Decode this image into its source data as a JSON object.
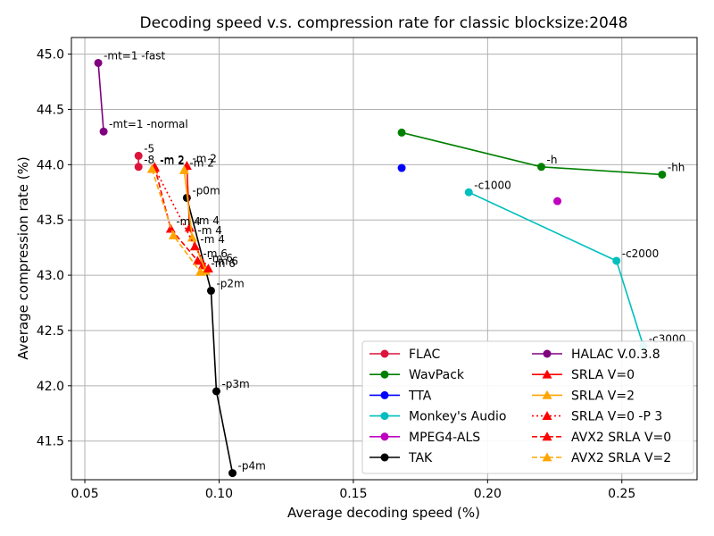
{
  "chart_data": {
    "type": "scatter",
    "title": "Decoding speed v.s. compression rate for classic blocksize:2048",
    "xlabel": "Average decoding speed (%)",
    "ylabel": "Average compression rate (%)",
    "xlim": [
      0.045,
      0.278
    ],
    "ylim": [
      41.15,
      45.15
    ],
    "xticks": [
      "0.05",
      "0.10",
      "0.15",
      "0.20",
      "0.25"
    ],
    "yticks": [
      "41.5",
      "42.0",
      "42.5",
      "43.0",
      "43.5",
      "44.0",
      "44.5",
      "45.0"
    ],
    "grid": true,
    "legend_position": "lower-right",
    "series": [
      {
        "name": "FLAC",
        "color": "#dc143c",
        "marker": "circle",
        "line": "solid",
        "points": [
          {
            "x": 0.07,
            "y": 44.08,
            "label": "-5"
          },
          {
            "x": 0.07,
            "y": 43.98,
            "label": "-8"
          }
        ]
      },
      {
        "name": "WavPack",
        "color": "#008000",
        "marker": "circle",
        "line": "solid",
        "points": [
          {
            "x": 0.168,
            "y": 44.29,
            "label": ""
          },
          {
            "x": 0.22,
            "y": 43.98,
            "label": "-h"
          },
          {
            "x": 0.265,
            "y": 43.91,
            "label": "-hh"
          }
        ]
      },
      {
        "name": "TTA",
        "color": "#0000ff",
        "marker": "circle",
        "line": "solid",
        "points": [
          {
            "x": 0.168,
            "y": 43.97,
            "label": ""
          }
        ]
      },
      {
        "name": "Monkey's Audio",
        "color": "#00bfbf",
        "marker": "circle",
        "line": "solid",
        "points": [
          {
            "x": 0.193,
            "y": 43.75,
            "label": "-c1000"
          },
          {
            "x": 0.248,
            "y": 43.13,
            "label": "-c2000"
          },
          {
            "x": 0.258,
            "y": 42.36,
            "label": "-c3000"
          }
        ]
      },
      {
        "name": "MPEG4-ALS",
        "color": "#bf00bf",
        "marker": "circle",
        "line": "solid",
        "points": [
          {
            "x": 0.226,
            "y": 43.67,
            "label": ""
          }
        ]
      },
      {
        "name": "TAK",
        "color": "#000000",
        "marker": "circle",
        "line": "solid",
        "points": [
          {
            "x": 0.088,
            "y": 43.7,
            "label": "-p0m"
          },
          {
            "x": 0.097,
            "y": 42.86,
            "label": "-p2m"
          },
          {
            "x": 0.099,
            "y": 41.95,
            "label": "-p3m"
          },
          {
            "x": 0.105,
            "y": 41.21,
            "label": "-p4m"
          }
        ]
      },
      {
        "name": "HALAC V.0.3.8",
        "color": "#800080",
        "marker": "circle",
        "line": "solid",
        "points": [
          {
            "x": 0.055,
            "y": 44.92,
            "label": "-mt=1 -fast"
          },
          {
            "x": 0.057,
            "y": 44.3,
            "label": "-mt=1 -normal"
          }
        ]
      },
      {
        "name": "SRLA V=0",
        "color": "#ff0000",
        "marker": "triangle",
        "line": "solid",
        "points": [
          {
            "x": 0.088,
            "y": 43.99,
            "label": "-m 2"
          },
          {
            "x": 0.089,
            "y": 43.43,
            "label": "-m 4"
          },
          {
            "x": 0.094,
            "y": 43.09,
            "label": "-m 6"
          }
        ]
      },
      {
        "name": "SRLA V=2",
        "color": "#ffa500",
        "marker": "triangle",
        "line": "solid",
        "points": [
          {
            "x": 0.087,
            "y": 43.95,
            "label": "-m 2"
          },
          {
            "x": 0.09,
            "y": 43.34,
            "label": "-m 4"
          },
          {
            "x": 0.095,
            "y": 43.04,
            "label": "-m 6"
          }
        ]
      },
      {
        "name": "SRLA V=0 -P 3",
        "color": "#ff0000",
        "marker": "triangle",
        "line": "dotted",
        "points": [
          {
            "x": 0.076,
            "y": 43.97,
            "label": "-m 2"
          },
          {
            "x": 0.091,
            "y": 43.26,
            "label": "-m 4"
          },
          {
            "x": 0.096,
            "y": 43.06,
            "label": "-m 6"
          }
        ]
      },
      {
        "name": "AVX2 SRLA V=0",
        "color": "#ff0000",
        "marker": "triangle",
        "line": "dashed",
        "points": [
          {
            "x": 0.076,
            "y": 43.98,
            "label": "-m 2"
          },
          {
            "x": 0.082,
            "y": 43.42,
            "label": "-m 4"
          },
          {
            "x": 0.092,
            "y": 43.13,
            "label": "-m 6"
          }
        ]
      },
      {
        "name": "AVX2 SRLA V=2",
        "color": "#ffa500",
        "marker": "triangle",
        "line": "dashed",
        "points": [
          {
            "x": 0.075,
            "y": 43.96,
            "label": ""
          },
          {
            "x": 0.083,
            "y": 43.36,
            "label": ""
          },
          {
            "x": 0.093,
            "y": 43.03,
            "label": ""
          }
        ]
      }
    ]
  }
}
